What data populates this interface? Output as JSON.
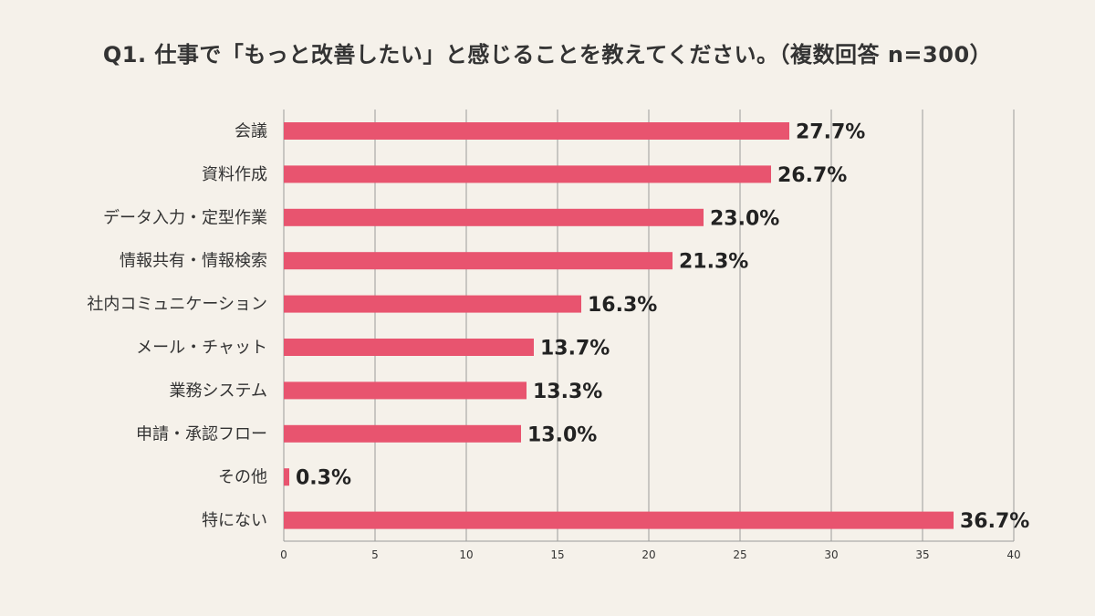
{
  "chart_data": {
    "type": "bar",
    "orientation": "horizontal",
    "title": "Q1. 仕事で「もっと改善したい」と感じることを教えてください。（複数回答 n=300）",
    "categories": [
      "会議",
      "資料作成",
      "データ入力・定型作業",
      "情報共有・情報検索",
      "社内コミュニケーション",
      "メール・チャット",
      "業務システム",
      "申請・承認フロー",
      "その他",
      "特にない"
    ],
    "values": [
      27.7,
      26.7,
      23.0,
      21.3,
      16.3,
      13.7,
      13.3,
      13.0,
      0.3,
      36.7
    ],
    "value_labels": [
      "27.7%",
      "26.7%",
      "23.0%",
      "21.3%",
      "16.3%",
      "13.7%",
      "13.3%",
      "13.0%",
      "0.3%",
      "36.7%"
    ],
    "xlim": [
      0,
      40
    ],
    "x_ticks": [
      0,
      5,
      10,
      15,
      20,
      25,
      30,
      35,
      40
    ],
    "x_tick_labels": [
      "0",
      "5",
      "10",
      "15",
      "20",
      "25",
      "30",
      "35",
      "40"
    ],
    "grid": true,
    "bar_color": "#e8546f",
    "background_color": "#f5f1ea"
  }
}
